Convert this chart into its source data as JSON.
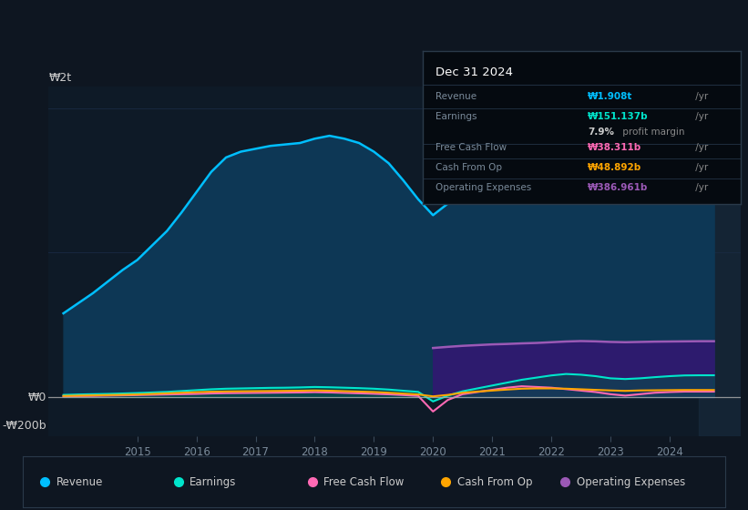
{
  "bg_color": "#0e1621",
  "plot_bg_color": "#0e1a27",
  "grid_color": "#1e3a5f",
  "title": "Dec 31 2024",
  "info_box": {
    "Revenue": {
      "value": "₩1.908t",
      "color": "#00bfff"
    },
    "Earnings": {
      "value": "₩151.137b",
      "color": "#00e5cc"
    },
    "profit_margin": {
      "value": "7.9%",
      "color": "#dddddd"
    },
    "Free Cash Flow": {
      "value": "₩38.311b",
      "color": "#ff69b4"
    },
    "Cash From Op": {
      "value": "₩48.892b",
      "color": "#ffa500"
    },
    "Operating Expenses": {
      "value": "₩386.961b",
      "color": "#9b59b6"
    }
  },
  "years": [
    2013.75,
    2014.0,
    2014.25,
    2014.5,
    2014.75,
    2015.0,
    2015.25,
    2015.5,
    2015.75,
    2016.0,
    2016.25,
    2016.5,
    2016.75,
    2017.0,
    2017.25,
    2017.5,
    2017.75,
    2018.0,
    2018.25,
    2018.5,
    2018.75,
    2019.0,
    2019.25,
    2019.5,
    2019.75,
    2020.0,
    2020.25,
    2020.5,
    2020.75,
    2021.0,
    2021.25,
    2021.5,
    2021.75,
    2022.0,
    2022.25,
    2022.5,
    2022.75,
    2023.0,
    2023.25,
    2023.5,
    2023.75,
    2024.0,
    2024.25,
    2024.5,
    2024.75
  ],
  "revenue": [
    580,
    650,
    720,
    800,
    880,
    950,
    1050,
    1150,
    1280,
    1420,
    1560,
    1660,
    1700,
    1720,
    1740,
    1750,
    1760,
    1790,
    1810,
    1790,
    1760,
    1700,
    1620,
    1500,
    1370,
    1260,
    1340,
    1460,
    1580,
    1680,
    1750,
    1810,
    1860,
    1940,
    1980,
    1960,
    1920,
    1830,
    1790,
    1790,
    1800,
    1840,
    1870,
    1880,
    1908
  ],
  "earnings": [
    15,
    18,
    20,
    22,
    25,
    28,
    32,
    36,
    42,
    48,
    54,
    58,
    60,
    62,
    64,
    65,
    67,
    70,
    68,
    65,
    62,
    58,
    52,
    44,
    36,
    -30,
    10,
    40,
    60,
    80,
    100,
    120,
    135,
    150,
    160,
    155,
    145,
    130,
    125,
    130,
    138,
    145,
    150,
    151,
    151
  ],
  "free_cash_flow": [
    5,
    7,
    8,
    10,
    12,
    14,
    16,
    18,
    20,
    22,
    25,
    27,
    28,
    29,
    30,
    31,
    32,
    34,
    32,
    29,
    26,
    23,
    19,
    14,
    8,
    -100,
    -20,
    20,
    35,
    50,
    65,
    75,
    70,
    65,
    55,
    45,
    35,
    20,
    10,
    20,
    30,
    35,
    38,
    38,
    38
  ],
  "cash_from_op": [
    8,
    10,
    12,
    14,
    16,
    18,
    22,
    26,
    30,
    34,
    37,
    39,
    40,
    41,
    42,
    43,
    44,
    46,
    44,
    41,
    38,
    35,
    30,
    24,
    18,
    5,
    15,
    30,
    38,
    45,
    52,
    58,
    60,
    60,
    58,
    54,
    50,
    46,
    43,
    46,
    47,
    48,
    49,
    49,
    49
  ],
  "operating_expenses": [
    0,
    0,
    0,
    0,
    0,
    0,
    0,
    0,
    0,
    0,
    0,
    0,
    0,
    0,
    0,
    0,
    0,
    0,
    0,
    0,
    0,
    0,
    0,
    0,
    0,
    340,
    348,
    355,
    360,
    365,
    368,
    372,
    375,
    380,
    385,
    388,
    386,
    382,
    380,
    382,
    384,
    385,
    386,
    387,
    387
  ],
  "legend": [
    {
      "label": "Revenue",
      "color": "#00bfff"
    },
    {
      "label": "Earnings",
      "color": "#00e5cc"
    },
    {
      "label": "Free Cash Flow",
      "color": "#ff69b4"
    },
    {
      "label": "Cash From Op",
      "color": "#ffa500"
    },
    {
      "label": "Operating Expenses",
      "color": "#9b59b6"
    }
  ],
  "ylim": [
    -270,
    2150
  ],
  "ytick_vals": [
    -200,
    0,
    2000
  ],
  "ytick_labels": [
    "-₩200b",
    "₩0",
    "₩2t"
  ],
  "xlim": [
    2013.5,
    2025.2
  ],
  "xticks": [
    2015,
    2016,
    2017,
    2018,
    2019,
    2020,
    2021,
    2022,
    2023,
    2024
  ],
  "highlight_x_start": 2024.5,
  "revenue_fill_color": "#0d3755",
  "revenue_line_color": "#00bfff",
  "op_exp_fill_color": "#2d1b6e",
  "op_exp_line_color": "#9b59b6",
  "earnings_line_color": "#00e5cc",
  "fcf_line_color": "#ff69b4",
  "cashop_line_color": "#ffa500",
  "zero_line_color": "#b0b0b0",
  "grid_line_color": "#1e3050"
}
